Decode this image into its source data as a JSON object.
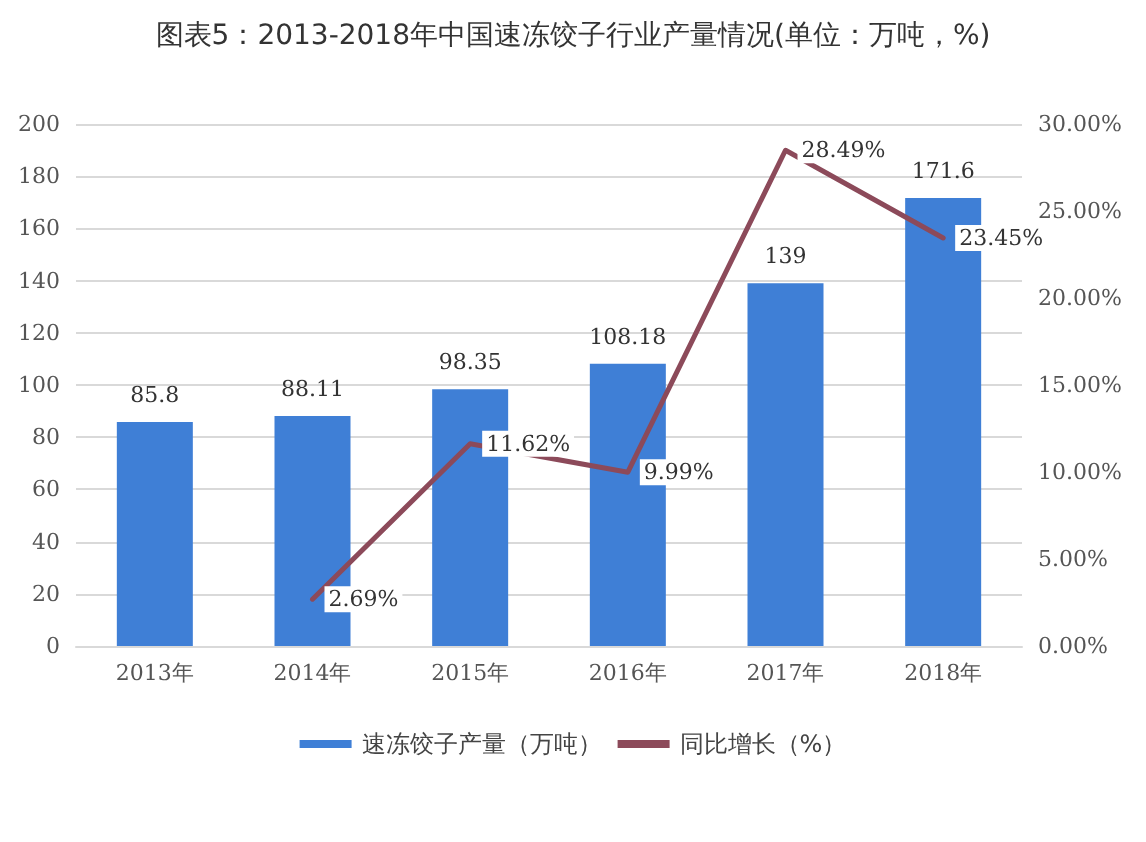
{
  "chart_data": {
    "type": "bar",
    "title": "图表5：2013-2018年中国速冻饺子行业产量情况(单位：万吨，%)",
    "categories": [
      "2013年",
      "2014年",
      "2015年",
      "2016年",
      "2017年",
      "2018年"
    ],
    "series": [
      {
        "name": "速冻饺子产量（万吨）",
        "color": "#3f7fd6",
        "values": [
          85.8,
          88.11,
          98.35,
          108.18,
          139,
          171.6
        ],
        "value_labels": [
          "85.8",
          "88.11",
          "98.35",
          "108.18",
          "139",
          "171.6"
        ]
      },
      {
        "name": "同比增长（%）",
        "type": "line",
        "axis": "y2",
        "color": "#8c4a5a",
        "values": [
          null,
          2.69,
          11.62,
          9.99,
          28.49,
          23.45
        ],
        "value_labels": [
          null,
          "2.69%",
          "11.62%",
          "9.99%",
          "28.49%",
          "23.45%"
        ]
      }
    ],
    "ylim": [
      0,
      200
    ],
    "yticks": [
      0,
      20,
      40,
      60,
      80,
      100,
      120,
      140,
      160,
      180,
      200
    ],
    "y2lim": [
      0,
      30
    ],
    "y2ticks": [
      {
        "value": 0,
        "label": "0.00%"
      },
      {
        "value": 5,
        "label": "5.00%"
      },
      {
        "value": 10,
        "label": "10.00%"
      },
      {
        "value": 15,
        "label": "15.00%"
      },
      {
        "value": 20,
        "label": "20.00%"
      },
      {
        "value": 25,
        "label": "25.00%"
      },
      {
        "value": 30,
        "label": "30.00%"
      }
    ],
    "grid": "y",
    "legend": "bottom",
    "marker": "none",
    "line_style": "solid"
  }
}
